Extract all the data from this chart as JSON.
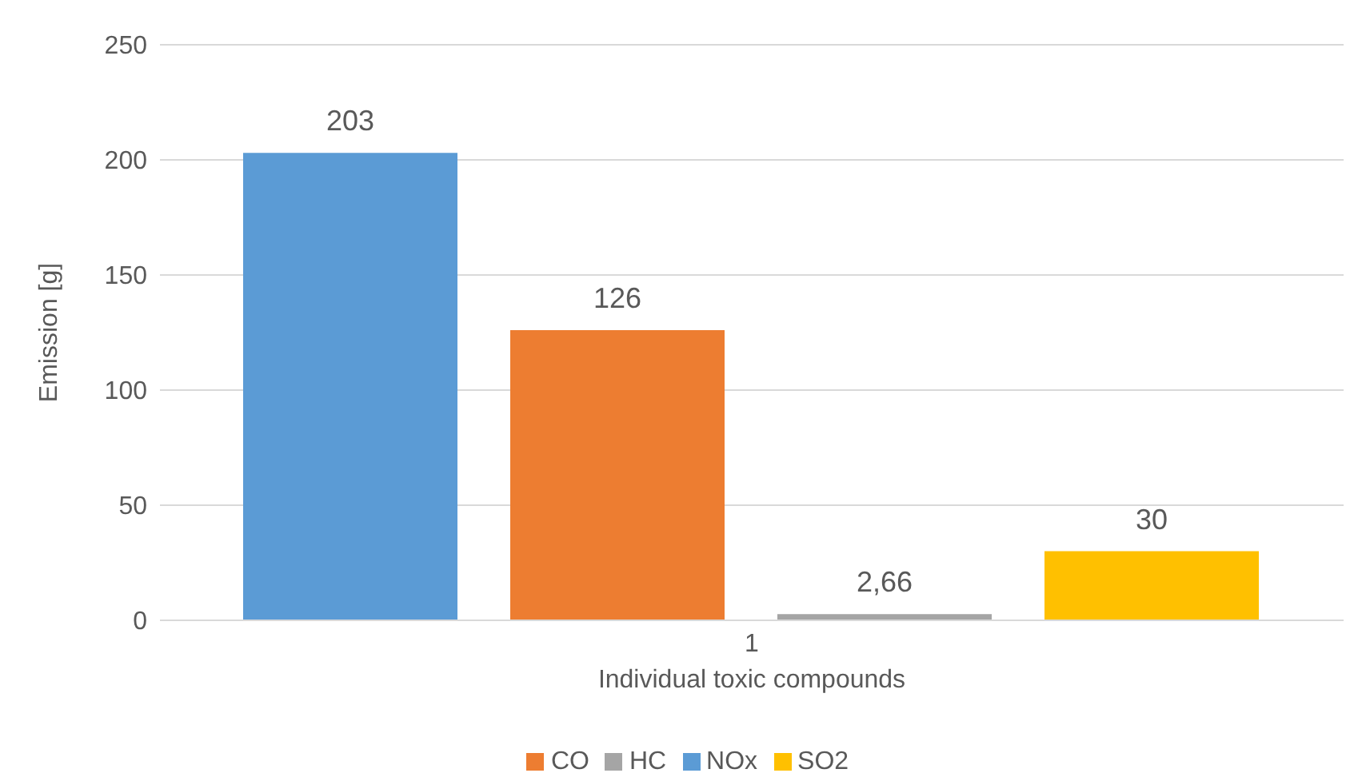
{
  "chart_data": {
    "type": "bar",
    "xlabel": "Individual toxic compounds",
    "ylabel": "Emission [g]",
    "categories": [
      "1"
    ],
    "series": [
      {
        "name": "NOx",
        "color": "#5b9bd5",
        "values": [
          203
        ],
        "value_labels": [
          "203"
        ]
      },
      {
        "name": "CO",
        "color": "#ed7d31",
        "values": [
          126
        ],
        "value_labels": [
          "126"
        ]
      },
      {
        "name": "HC",
        "color": "#a5a5a5",
        "values": [
          2.66
        ],
        "value_labels": [
          "2,66"
        ]
      },
      {
        "name": "SO2",
        "color": "#ffc000",
        "values": [
          30
        ],
        "value_labels": [
          "30"
        ]
      }
    ],
    "ylim": [
      0,
      250
    ],
    "yticks": [
      0,
      50,
      100,
      150,
      200,
      250
    ],
    "grid": "y",
    "legend": "bottom"
  }
}
